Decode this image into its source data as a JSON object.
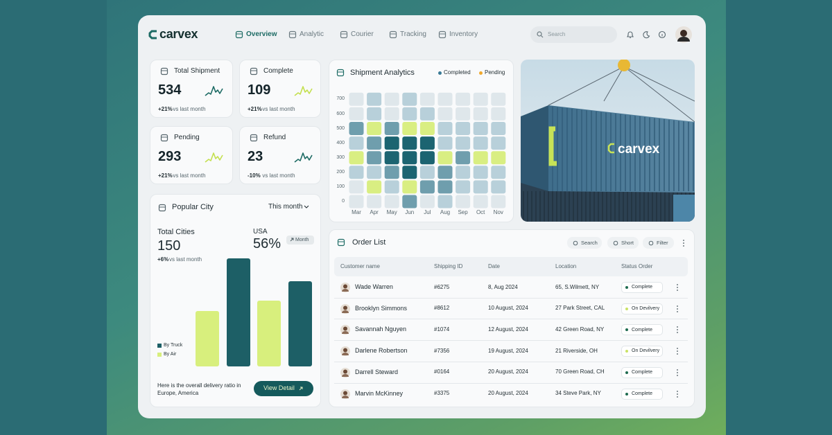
{
  "brand": "carvex",
  "nav": [
    "Overview",
    "Analytic",
    "Courier",
    "Tracking",
    "Inventory"
  ],
  "search_placeholder": "Search",
  "stats": [
    {
      "title": "Total Shipment",
      "value": 534,
      "change": "+21%",
      "note": "vs last month",
      "spark_color": "#1d6b64"
    },
    {
      "title": "Complete",
      "value": 109,
      "change": "+21%",
      "note": "vs last month",
      "spark_color": "#c4e04f"
    },
    {
      "title": "Pending",
      "value": 293,
      "change": "+21%",
      "note": "vs last month",
      "spark_color": "#c4e04f"
    },
    {
      "title": "Refund",
      "value": 23,
      "change": "-10%",
      "note": "vs last month",
      "spark_color": "#1d6b64"
    }
  ],
  "popular_city": {
    "title": "Popular City",
    "period": "This month",
    "total_label": "Total Cities",
    "total": 150,
    "change": "+6%",
    "change_note": "vs last month",
    "country": "USA",
    "share": "56%",
    "badge": "Month",
    "footer": "Here is the overall delivery ratio in Europe, America",
    "button": "View Detail",
    "chart_data": {
      "type": "bar",
      "ylim": [
        0,
        160
      ],
      "series": [
        {
          "name": "By Truck",
          "color": "#1d5f66",
          "values": [
            156,
            123
          ]
        },
        {
          "name": "By Air",
          "color": "#d8ef7d",
          "values": [
            80,
            95
          ]
        }
      ]
    }
  },
  "shipment_analytics": {
    "title": "Shipment Analytics",
    "chart_data": {
      "type": "heatmap",
      "categories": [
        "Mar",
        "Apr",
        "May",
        "Jun",
        "Jul",
        "Aug",
        "Sep",
        "Oct",
        "Nov"
      ],
      "yticks": [
        0,
        100,
        200,
        300,
        400,
        500,
        600,
        700
      ],
      "series": [
        {
          "name": "Completed",
          "color": "#3a7a96"
        },
        {
          "name": "Pending",
          "color": "#f0a92e"
        }
      ],
      "palette": [
        "#dfe7eb",
        "#b8d0da",
        "#6f9ead",
        "#1c6471",
        "#d9ee82"
      ],
      "levels": [
        [
          0,
          0,
          0,
          2,
          0,
          1,
          0,
          0,
          0
        ],
        [
          0,
          4,
          1,
          4,
          2,
          2,
          1,
          1,
          1
        ],
        [
          1,
          1,
          2,
          3,
          1,
          2,
          1,
          1,
          1
        ],
        [
          4,
          2,
          3,
          3,
          3,
          4,
          2,
          4,
          4
        ],
        [
          1,
          2,
          3,
          3,
          3,
          1,
          1,
          1,
          1
        ],
        [
          2,
          4,
          2,
          4,
          4,
          1,
          1,
          1,
          1
        ],
        [
          0,
          1,
          0,
          1,
          1,
          0,
          0,
          0,
          0
        ],
        [
          0,
          1,
          0,
          1,
          0,
          0,
          0,
          0,
          0
        ]
      ]
    }
  },
  "order_list": {
    "title": "Order List",
    "actions": [
      "Search",
      "Short",
      "Filter"
    ],
    "columns": [
      "Customer name",
      "Shipping ID",
      "Date",
      "Location",
      "Status Order"
    ],
    "rows": [
      [
        "Wade Warren",
        "#6275",
        "8, Aug 2024",
        "65, S.Wilmett, NY",
        "Complete"
      ],
      [
        "Brooklyn Simmons",
        "#8612",
        "10 August, 2024",
        "27 Park Street, CAL",
        "On Devilvery"
      ],
      [
        "Savannah Nguyen",
        "#1074",
        "12 August, 2024",
        "42 Green Road, NY",
        "Complete"
      ],
      [
        "Darlene Robertson",
        "#7356",
        "19 August, 2024",
        "21 Riverside, OH",
        "On Devilvery"
      ],
      [
        "Darrell Steward",
        "#0164",
        "20 August, 2024",
        "70 Green Road, CH",
        "Complete"
      ],
      [
        "Marvin McKinney",
        "#3375",
        "20 August, 2024",
        "34 Steve Park, NY",
        "Complete"
      ]
    ],
    "status_colors": [
      "#1e6b4f",
      "#c9e265",
      "#1e6b4f",
      "#c9e265",
      "#1e6b4f",
      "#1e6b4f"
    ]
  }
}
